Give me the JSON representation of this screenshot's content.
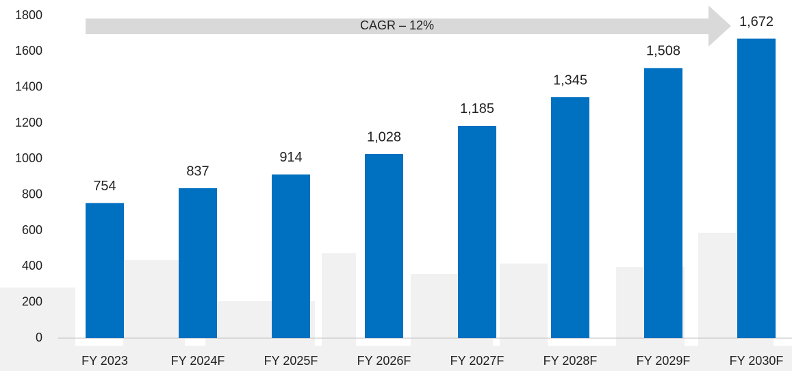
{
  "chart_data": {
    "type": "bar",
    "annotation": "CAGR – 12%",
    "categories": [
      "FY 2023",
      "FY 2024F",
      "FY 2025F",
      "FY 2026F",
      "FY 2027F",
      "FY 2028F",
      "FY 2029F",
      "FY 2030F"
    ],
    "values": [
      754,
      837,
      914,
      1028,
      1185,
      1345,
      1508,
      1672
    ],
    "value_labels": [
      "754",
      "837",
      "914",
      "1,028",
      "1,185",
      "1,345",
      "1,508",
      "1,672"
    ],
    "color": "#0070c0",
    "ylim": [
      0,
      1800
    ],
    "yticks": [
      0,
      200,
      400,
      600,
      800,
      1000,
      1200,
      1400,
      1600,
      1800
    ],
    "grid": false
  }
}
